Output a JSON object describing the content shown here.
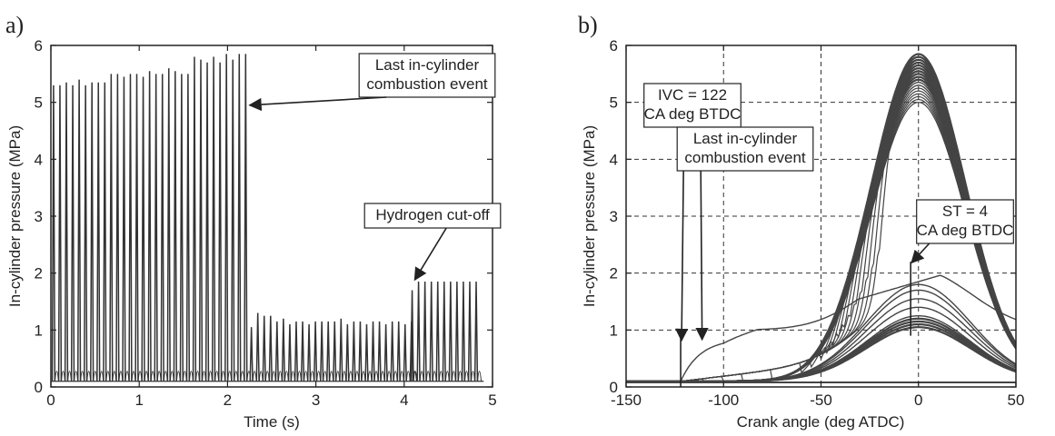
{
  "chart_data": [
    {
      "panel": "a)",
      "type": "line",
      "xlabel": "Time (s)",
      "ylabel": "In-cylinder pressure (MPa)",
      "xlim": [
        0,
        5
      ],
      "ylim": [
        0,
        6
      ],
      "xticks": [
        "0",
        "1",
        "2",
        "3",
        "4",
        "5"
      ],
      "yticks": [
        "0",
        "1",
        "2",
        "3",
        "4",
        "5",
        "6"
      ],
      "grid": false,
      "cycle_period_s": 0.0725,
      "firing_peaks": {
        "start_s": 0.03,
        "values": [
          5.3,
          5.3,
          5.35,
          5.3,
          5.4,
          5.3,
          5.35,
          5.35,
          5.35,
          5.5,
          5.5,
          5.45,
          5.5,
          5.5,
          5.45,
          5.55,
          5.5,
          5.5,
          5.6,
          5.55,
          5.5,
          5.5,
          5.8,
          5.75,
          5.7,
          5.8,
          5.7,
          5.85,
          5.75,
          5.85,
          5.85
        ]
      },
      "motoring_peaks_after_last_event": {
        "start_s": 2.27,
        "values": [
          1.05,
          1.3,
          1.25,
          1.25,
          1.15,
          1.2,
          1.1,
          1.15,
          1.15,
          1.1,
          1.15,
          1.15,
          1.15,
          1.15,
          1.2,
          1.1,
          1.15,
          1.15,
          1.1,
          1.15,
          1.15,
          1.1,
          1.15,
          1.15,
          1.1,
          1.15
        ]
      },
      "peaks_after_hydrogen_cutoff": {
        "start_s": 4.09,
        "values": [
          1.7,
          1.85,
          1.85,
          1.85,
          1.85,
          1.85,
          1.85,
          1.85,
          1.85,
          1.85,
          1.85
        ]
      },
      "baseline_MPa": 0.1,
      "annotations": [
        {
          "lines": [
            "Last in-cylinder",
            "combustion event"
          ],
          "target": [
            2.23,
            4.95
          ]
        },
        {
          "lines": [
            "Hydrogen cut-off"
          ],
          "target": [
            4.12,
            1.85
          ]
        }
      ]
    },
    {
      "panel": "b)",
      "type": "line",
      "xlabel": "Crank angle  (deg ATDC)",
      "ylabel": "In-cylinder pressure  (MPa)",
      "xlim": [
        -150,
        50
      ],
      "ylim": [
        0,
        6
      ],
      "xticks": [
        "-150",
        "-100",
        "-50",
        "0",
        "50"
      ],
      "yticks": [
        "0",
        "1",
        "2",
        "3",
        "4",
        "5",
        "6"
      ],
      "grid": true,
      "motoring_peak_MPa": 1.1,
      "firing_peaks_MPa": [
        5.4,
        5.45,
        5.5,
        5.55,
        5.6,
        5.65,
        5.7,
        5.75,
        5.8,
        5.85
      ],
      "late_ignition_onsets_deg": [
        -110,
        -100,
        -90,
        -75,
        -60,
        -55,
        -50,
        -47,
        -44,
        -41,
        -38,
        -35,
        -32,
        -29,
        -26,
        -23,
        -20
      ],
      "late_ignition_peaks_MPa": [
        5.0,
        5.05,
        5.1,
        5.15,
        5.2,
        5.25,
        5.3,
        5.3,
        5.35,
        5.35,
        5.4,
        5.4,
        5.45,
        5.45,
        5.5,
        5.5,
        5.55
      ],
      "hydrogen_cutoff_peaks_MPa": [
        1.25,
        1.4,
        1.55,
        1.7,
        1.8
      ],
      "markers": [
        {
          "label": [
            "IVC = 122",
            "CA deg BTDC"
          ],
          "x": -122,
          "y_range": [
            0,
            0.85
          ]
        },
        {
          "label": [
            "ST = 4",
            "CA deg BTDC"
          ],
          "x": -4,
          "y_range": [
            0.9,
            2.2
          ]
        }
      ],
      "annotations": [
        {
          "lines": [
            "Last in-cylinder",
            "combustion event"
          ],
          "target": [
            -111,
            0.8
          ]
        }
      ]
    }
  ]
}
